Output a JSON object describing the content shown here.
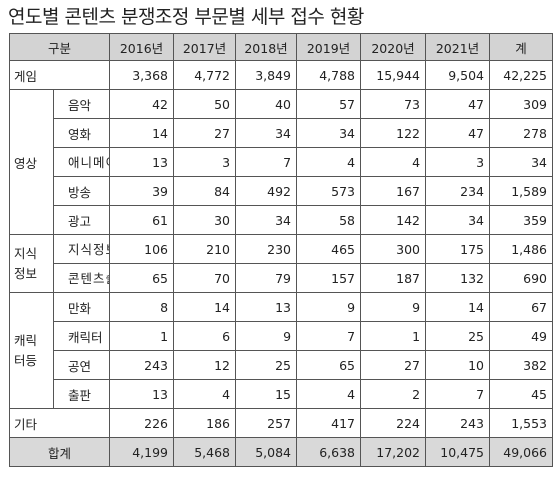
{
  "title": "연도별 콘텐츠 분쟁조정 부문별 세부 접수 현황",
  "header": [
    "구분",
    "2016년",
    "2017년",
    "2018년",
    "2019년",
    "2020년",
    "2021년",
    "계"
  ],
  "rows": {
    "game": {
      "label": "게임",
      "values": [
        "3,368",
        "4,772",
        "3,849",
        "4,788",
        "15,944",
        "9,504",
        "42,225"
      ]
    },
    "video": {
      "label": "영상",
      "items": [
        {
          "label": "음악",
          "values": [
            "42",
            "50",
            "40",
            "57",
            "73",
            "47",
            "309"
          ]
        },
        {
          "label": "영화",
          "values": [
            "14",
            "27",
            "34",
            "34",
            "122",
            "47",
            "278"
          ]
        },
        {
          "label": "애니메이션",
          "values": [
            "13",
            "3",
            "7",
            "4",
            "4",
            "3",
            "34"
          ]
        },
        {
          "label": "방송",
          "values": [
            "39",
            "84",
            "492",
            "573",
            "167",
            "234",
            "1,589"
          ]
        },
        {
          "label": "광고",
          "values": [
            "61",
            "30",
            "34",
            "58",
            "142",
            "34",
            "359"
          ]
        }
      ]
    },
    "knowledge": {
      "label": "지식정보",
      "items": [
        {
          "label": "지식정보",
          "values": [
            "106",
            "210",
            "230",
            "465",
            "300",
            "175",
            "1,486"
          ]
        },
        {
          "label": "콘텐츠솔루션",
          "values": [
            "65",
            "70",
            "79",
            "157",
            "187",
            "132",
            "690"
          ]
        }
      ]
    },
    "character": {
      "label": "캐릭터등",
      "items": [
        {
          "label": "만화",
          "values": [
            "8",
            "14",
            "13",
            "9",
            "9",
            "14",
            "67"
          ]
        },
        {
          "label": "캐릭터",
          "values": [
            "1",
            "6",
            "9",
            "7",
            "1",
            "25",
            "49"
          ]
        },
        {
          "label": "공연",
          "values": [
            "243",
            "12",
            "25",
            "65",
            "27",
            "10",
            "382"
          ]
        },
        {
          "label": "출판",
          "values": [
            "13",
            "4",
            "15",
            "4",
            "2",
            "7",
            "45"
          ]
        }
      ]
    },
    "other": {
      "label": "기타",
      "values": [
        "226",
        "186",
        "257",
        "417",
        "224",
        "243",
        "1,553"
      ]
    },
    "total": {
      "label": "합계",
      "values": [
        "4,199",
        "5,468",
        "5,084",
        "6,638",
        "17,202",
        "10,475",
        "49,066"
      ]
    }
  }
}
